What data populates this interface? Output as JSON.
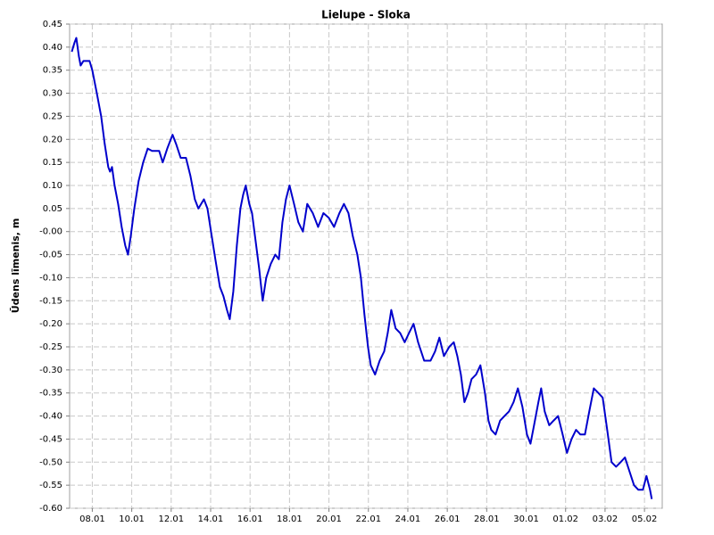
{
  "chart_data": {
    "type": "line",
    "title": "Lielupe - Sloka",
    "y_label": "Ūdens līmenis, m",
    "color": "#0000cc",
    "grid": true,
    "xlim": [
      6.85,
      36.9
    ],
    "ylim": [
      -0.6,
      0.45
    ],
    "xticks": [
      {
        "value": 8,
        "label": "08.01"
      },
      {
        "value": 10,
        "label": "10.01"
      },
      {
        "value": 12,
        "label": "12.01"
      },
      {
        "value": 14,
        "label": "14.01"
      },
      {
        "value": 16,
        "label": "16.01"
      },
      {
        "value": 18,
        "label": "18.01"
      },
      {
        "value": 20,
        "label": "20.01"
      },
      {
        "value": 22,
        "label": "22.01"
      },
      {
        "value": 24,
        "label": "24.01"
      },
      {
        "value": 26,
        "label": "26.01"
      },
      {
        "value": 28,
        "label": "28.01"
      },
      {
        "value": 30,
        "label": "30.01"
      },
      {
        "value": 32,
        "label": "01.02"
      },
      {
        "value": 34,
        "label": "03.02"
      },
      {
        "value": 36,
        "label": "05.02"
      }
    ],
    "yticks": [
      0.45,
      {
        "value": 0.4,
        "label": "0.40"
      },
      0.35,
      {
        "value": 0.3,
        "label": "0.30"
      },
      0.25,
      {
        "value": 0.2,
        "label": "0.20"
      },
      0.15,
      {
        "value": 0.1,
        "label": "0.10"
      },
      0.05,
      {
        "value": 0,
        "label": "-0.00"
      },
      -0.05,
      {
        "value": -0.1,
        "label": "-0.10"
      },
      -0.15,
      {
        "value": -0.2,
        "label": "-0.20"
      },
      -0.25,
      {
        "value": -0.3,
        "label": "-0.30"
      },
      -0.35,
      {
        "value": -0.4,
        "label": "-0.40"
      },
      -0.45,
      {
        "value": -0.5,
        "label": "-0.50"
      },
      -0.55,
      {
        "value": -0.6,
        "label": "-0.60"
      }
    ],
    "x": [
      6.96,
      7.1,
      7.19,
      7.32,
      7.41,
      7.55,
      7.64,
      7.86,
      8.0,
      8.23,
      8.45,
      8.63,
      8.81,
      8.9,
      9.0,
      9.13,
      9.31,
      9.49,
      9.67,
      9.81,
      9.95,
      10.13,
      10.35,
      10.58,
      10.81,
      11.03,
      11.39,
      11.57,
      11.8,
      12.07,
      12.25,
      12.48,
      12.75,
      12.98,
      13.2,
      13.38,
      13.66,
      13.84,
      14.02,
      14.24,
      14.47,
      14.65,
      14.83,
      14.97,
      15.15,
      15.33,
      15.51,
      15.65,
      15.78,
      15.96,
      16.1,
      16.28,
      16.46,
      16.64,
      16.82,
      17.05,
      17.28,
      17.46,
      17.64,
      17.82,
      18.0,
      18.23,
      18.45,
      18.68,
      18.9,
      19.18,
      19.45,
      19.72,
      19.99,
      20.26,
      20.53,
      20.76,
      20.99,
      21.21,
      21.44,
      21.62,
      21.8,
      21.98,
      22.12,
      22.34,
      22.57,
      22.8,
      22.98,
      23.16,
      23.38,
      23.61,
      23.84,
      24.06,
      24.29,
      24.52,
      24.83,
      25.15,
      25.38,
      25.6,
      25.83,
      26.1,
      26.33,
      26.51,
      26.69,
      26.87,
      27.05,
      27.23,
      27.46,
      27.68,
      27.91,
      28.09,
      28.23,
      28.45,
      28.68,
      28.9,
      29.13,
      29.36,
      29.58,
      29.81,
      30.04,
      30.22,
      30.4,
      30.62,
      30.76,
      30.94,
      31.17,
      31.39,
      31.62,
      31.85,
      32.07,
      32.3,
      32.53,
      32.75,
      32.98,
      33.2,
      33.43,
      33.66,
      33.88,
      34.11,
      34.33,
      34.56,
      34.79,
      35.01,
      35.24,
      35.47,
      35.69,
      35.92,
      36.1,
      36.28,
      36.37
    ],
    "values": [
      0.39,
      0.41,
      0.42,
      0.38,
      0.36,
      0.37,
      0.37,
      0.37,
      0.35,
      0.3,
      0.25,
      0.19,
      0.14,
      0.13,
      0.14,
      0.1,
      0.06,
      0.01,
      -0.03,
      -0.05,
      -0.01,
      0.05,
      0.11,
      0.15,
      0.18,
      0.175,
      0.175,
      0.15,
      0.18,
      0.21,
      0.19,
      0.16,
      0.16,
      0.12,
      0.07,
      0.05,
      0.07,
      0.05,
      0.0,
      -0.06,
      -0.12,
      -0.14,
      -0.17,
      -0.19,
      -0.13,
      -0.03,
      0.05,
      0.08,
      0.1,
      0.06,
      0.04,
      -0.02,
      -0.08,
      -0.15,
      -0.1,
      -0.07,
      -0.05,
      -0.06,
      0.02,
      0.07,
      0.1,
      0.06,
      0.02,
      0.0,
      0.06,
      0.04,
      0.01,
      0.04,
      0.03,
      0.01,
      0.04,
      0.06,
      0.04,
      -0.01,
      -0.05,
      -0.1,
      -0.18,
      -0.25,
      -0.29,
      -0.31,
      -0.28,
      -0.26,
      -0.22,
      -0.17,
      -0.21,
      -0.22,
      -0.24,
      -0.22,
      -0.2,
      -0.24,
      -0.28,
      -0.28,
      -0.26,
      -0.23,
      -0.27,
      -0.25,
      -0.24,
      -0.27,
      -0.31,
      -0.37,
      -0.35,
      -0.32,
      -0.31,
      -0.29,
      -0.35,
      -0.41,
      -0.43,
      -0.44,
      -0.41,
      -0.4,
      -0.39,
      -0.37,
      -0.34,
      -0.38,
      -0.44,
      -0.46,
      -0.42,
      -0.37,
      -0.34,
      -0.39,
      -0.42,
      -0.41,
      -0.4,
      -0.44,
      -0.48,
      -0.45,
      -0.43,
      -0.44,
      -0.44,
      -0.39,
      -0.34,
      -0.35,
      -0.36,
      -0.43,
      -0.5,
      -0.51,
      -0.5,
      -0.49,
      -0.52,
      -0.55,
      -0.56,
      -0.56,
      -0.53,
      -0.56,
      -0.58
    ]
  }
}
